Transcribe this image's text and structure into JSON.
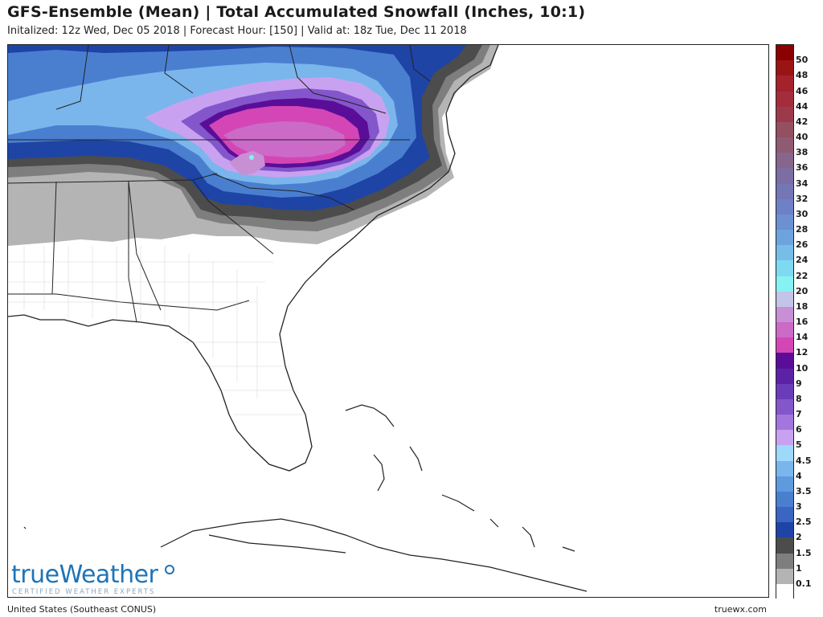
{
  "header": {
    "title": "GFS-Ensemble (Mean) | Total Accumulated Snowfall (Inches, 10:1)",
    "subtitle": "Initalized: 12z Wed, Dec 05 2018 | Forecast Hour: [150] | Valid at: 18z Tue, Dec 11 2018"
  },
  "footer": {
    "region": "United States (Southeast CONUS)",
    "site": "truewx.com"
  },
  "brand": {
    "name": "trueWeather",
    "tagline": "CERTIFIED WEATHER EXPERTS"
  },
  "legend": {
    "labels": [
      "50",
      "48",
      "46",
      "44",
      "42",
      "40",
      "38",
      "36",
      "34",
      "32",
      "30",
      "28",
      "26",
      "24",
      "22",
      "20",
      "18",
      "16",
      "14",
      "12",
      "10",
      "9",
      "8",
      "7",
      "6",
      "5",
      "4.5",
      "4",
      "3.5",
      "3",
      "2.5",
      "2",
      "1.5",
      "1",
      "0.1"
    ],
    "colors": [
      "#8b0000",
      "#9b1414",
      "#a4222c",
      "#a32d3c",
      "#9c3a4c",
      "#945060",
      "#8e5b72",
      "#86668a",
      "#7c6da2",
      "#7476b6",
      "#6e80c6",
      "#6c90d2",
      "#6ea4de",
      "#76bee8",
      "#7edaf0",
      "#86f2f4",
      "#c4c4e8",
      "#c890d4",
      "#cc6ac8",
      "#d446b6",
      "#5a0e98",
      "#5c22a6",
      "#6a3cba",
      "#8456cc",
      "#a276dc",
      "#c8a2f0",
      "#9ed8fa",
      "#7ab6ec",
      "#5e9ade",
      "#4a7fd0",
      "#3a66c2",
      "#1e44a6",
      "#4c4c4c",
      "#7e7e7e",
      "#b4b4b4"
    ],
    "bottom_color": "#ffffff"
  },
  "map_layers": {
    "light_snow": "#b4b4b4",
    "one_inch": "#7e7e7e",
    "one_half": "#4c4c4c",
    "two": "#1e44a6",
    "three": "#4a7fd0",
    "four": "#7ab6ec",
    "five": "#c8a2f0",
    "seven": "#8456cc",
    "ten": "#5a0e98",
    "twelve": "#d446b6",
    "fourteen": "#cc6ac8",
    "sixteen": "#c890d4",
    "twenty": "#86f2f4",
    "land_outline": "#222222",
    "county_line": "#9a9a9a"
  }
}
